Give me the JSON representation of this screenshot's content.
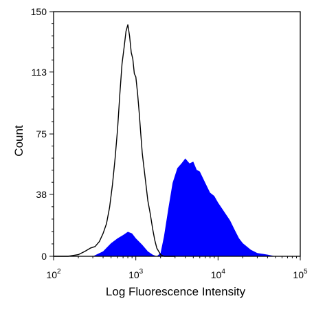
{
  "chart_data": {
    "type": "area",
    "title": "",
    "xlabel": "Log Fluorescence Intensity",
    "ylabel": "Count",
    "x_scale": "log",
    "xlim": [
      100,
      100000
    ],
    "ylim": [
      0,
      150
    ],
    "x_ticks": [
      {
        "base": "10",
        "exp": "2"
      },
      {
        "base": "10",
        "exp": "3"
      },
      {
        "base": "10",
        "exp": "4"
      },
      {
        "base": "10",
        "exp": "5"
      }
    ],
    "y_ticks": [
      "0",
      "38",
      "75",
      "113",
      "150"
    ],
    "grid": false,
    "legend": "none",
    "series": [
      {
        "style": "outline",
        "color": "#000000",
        "x": [
          100,
          150,
          200,
          240,
          280,
          320,
          360,
          400,
          440,
          480,
          520,
          560,
          600,
          640,
          680,
          720,
          760,
          800,
          840,
          880,
          920,
          960,
          1000,
          1050,
          1100,
          1150,
          1200,
          1300,
          1400,
          1500,
          1600,
          1700,
          1800,
          1900,
          2000,
          2200,
          2500,
          3000
        ],
        "y": [
          0,
          0,
          1,
          3,
          5,
          6,
          9,
          14,
          20,
          30,
          44,
          60,
          78,
          100,
          118,
          128,
          138,
          142,
          135,
          125,
          121,
          112,
          110,
          100,
          88,
          75,
          63,
          48,
          34,
          26,
          17,
          10,
          5,
          3,
          1,
          0,
          0,
          0
        ]
      },
      {
        "style": "filled",
        "color": "#0000ff",
        "x": [
          100,
          300,
          400,
          500,
          600,
          700,
          800,
          900,
          1000,
          1200,
          1400,
          1600,
          1800,
          2000,
          2200,
          2500,
          2800,
          3200,
          3600,
          4000,
          4500,
          5000,
          5500,
          6000,
          7000,
          8000,
          9000,
          10000,
          12000,
          14000,
          16000,
          18000,
          20000,
          25000,
          30000,
          40000,
          50000,
          60000,
          80000,
          100000
        ],
        "y": [
          0,
          0,
          3,
          8,
          11,
          13,
          15,
          14,
          11,
          7,
          3,
          1,
          0,
          2,
          12,
          30,
          45,
          54,
          57,
          60,
          57,
          58,
          53,
          52,
          45,
          39,
          37,
          33,
          27,
          22,
          16,
          11,
          8,
          4,
          2,
          1,
          0,
          0,
          0,
          0
        ]
      }
    ]
  }
}
